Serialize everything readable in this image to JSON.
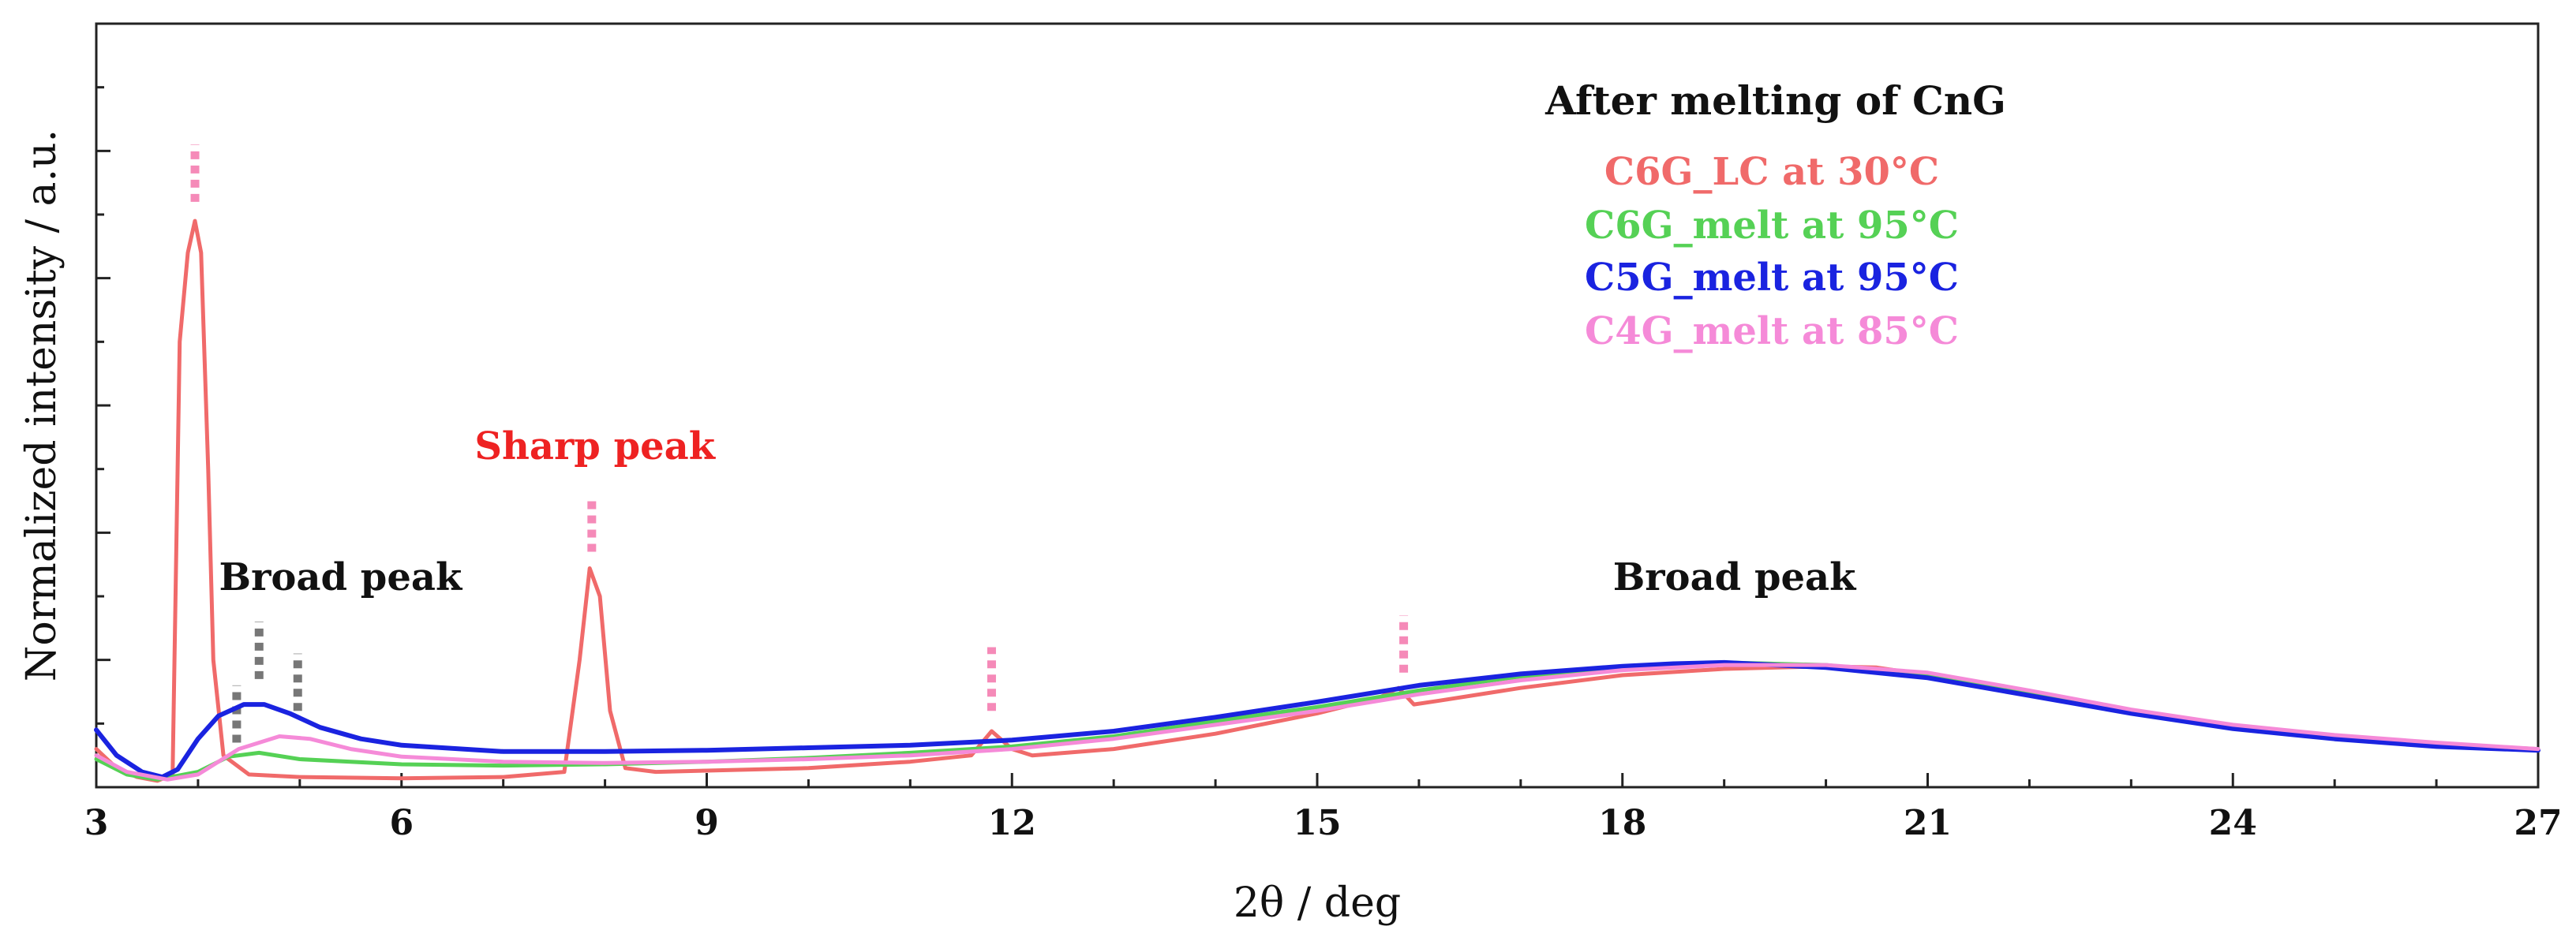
{
  "chart_data": {
    "type": "line",
    "title": "",
    "xlabel": "2θ / deg",
    "ylabel": "Normalized intensity / a.u.",
    "xlim": [
      3,
      27
    ],
    "ylim": [
      0,
      6
    ],
    "xticks": [
      3,
      6,
      9,
      12,
      15,
      18,
      21,
      24,
      27
    ],
    "x_minor_step": 1,
    "y_tick_step": 0.5,
    "y_tick_labels_shown": false,
    "grid": false,
    "legend_title": "After melting of CnG",
    "legend_position": "top-right",
    "series": [
      {
        "name": "C6G_LC at 30°C",
        "color": "#f06a6a",
        "points": [
          [
            3.0,
            0.3
          ],
          [
            3.2,
            0.15
          ],
          [
            3.4,
            0.08
          ],
          [
            3.6,
            0.05
          ],
          [
            3.75,
            0.1
          ],
          [
            3.82,
            3.5
          ],
          [
            3.9,
            4.2
          ],
          [
            3.97,
            4.45
          ],
          [
            4.03,
            4.2
          ],
          [
            4.1,
            2.5
          ],
          [
            4.15,
            1.0
          ],
          [
            4.25,
            0.25
          ],
          [
            4.5,
            0.1
          ],
          [
            5.0,
            0.08
          ],
          [
            6.0,
            0.07
          ],
          [
            7.0,
            0.08
          ],
          [
            7.6,
            0.12
          ],
          [
            7.75,
            1.0
          ],
          [
            7.85,
            1.72
          ],
          [
            7.95,
            1.5
          ],
          [
            8.05,
            0.6
          ],
          [
            8.2,
            0.15
          ],
          [
            8.5,
            0.12
          ],
          [
            9.0,
            0.13
          ],
          [
            10.0,
            0.15
          ],
          [
            11.0,
            0.2
          ],
          [
            11.6,
            0.25
          ],
          [
            11.8,
            0.44
          ],
          [
            12.0,
            0.3
          ],
          [
            12.2,
            0.25
          ],
          [
            13.0,
            0.3
          ],
          [
            14.0,
            0.42
          ],
          [
            15.0,
            0.58
          ],
          [
            15.6,
            0.7
          ],
          [
            15.8,
            0.78
          ],
          [
            15.95,
            0.65
          ],
          [
            16.2,
            0.68
          ],
          [
            17.0,
            0.78
          ],
          [
            18.0,
            0.88
          ],
          [
            19.0,
            0.93
          ],
          [
            20.0,
            0.95
          ],
          [
            20.5,
            0.94
          ],
          [
            21.0,
            0.88
          ],
          [
            22.0,
            0.74
          ],
          [
            23.0,
            0.6
          ],
          [
            24.0,
            0.48
          ],
          [
            25.0,
            0.4
          ],
          [
            26.0,
            0.34
          ],
          [
            27.0,
            0.3
          ]
        ]
      },
      {
        "name": "C6G_melt at 95°C",
        "color": "#55d155",
        "points": [
          [
            3.0,
            0.22
          ],
          [
            3.3,
            0.1
          ],
          [
            3.6,
            0.06
          ],
          [
            4.0,
            0.12
          ],
          [
            4.3,
            0.24
          ],
          [
            4.6,
            0.27
          ],
          [
            5.0,
            0.22
          ],
          [
            6.0,
            0.18
          ],
          [
            7.0,
            0.17
          ],
          [
            8.0,
            0.18
          ],
          [
            9.0,
            0.2
          ],
          [
            10.0,
            0.23
          ],
          [
            11.0,
            0.27
          ],
          [
            12.0,
            0.32
          ],
          [
            13.0,
            0.4
          ],
          [
            14.0,
            0.52
          ],
          [
            15.0,
            0.63
          ],
          [
            16.0,
            0.76
          ],
          [
            17.0,
            0.87
          ],
          [
            18.0,
            0.94
          ],
          [
            19.0,
            0.98
          ],
          [
            20.0,
            0.96
          ],
          [
            21.0,
            0.88
          ],
          [
            22.0,
            0.74
          ],
          [
            23.0,
            0.59
          ],
          [
            24.0,
            0.47
          ],
          [
            25.0,
            0.39
          ],
          [
            26.0,
            0.33
          ],
          [
            27.0,
            0.29
          ]
        ]
      },
      {
        "name": "C5G_melt at 95°C",
        "color": "#1a23e0",
        "points": [
          [
            3.0,
            0.45
          ],
          [
            3.2,
            0.25
          ],
          [
            3.45,
            0.12
          ],
          [
            3.65,
            0.08
          ],
          [
            3.8,
            0.14
          ],
          [
            4.0,
            0.38
          ],
          [
            4.2,
            0.56
          ],
          [
            4.45,
            0.65
          ],
          [
            4.65,
            0.65
          ],
          [
            4.9,
            0.58
          ],
          [
            5.2,
            0.47
          ],
          [
            5.6,
            0.38
          ],
          [
            6.0,
            0.33
          ],
          [
            7.0,
            0.28
          ],
          [
            8.0,
            0.28
          ],
          [
            9.0,
            0.29
          ],
          [
            10.0,
            0.31
          ],
          [
            11.0,
            0.33
          ],
          [
            12.0,
            0.37
          ],
          [
            13.0,
            0.44
          ],
          [
            14.0,
            0.55
          ],
          [
            15.0,
            0.67
          ],
          [
            16.0,
            0.8
          ],
          [
            17.0,
            0.89
          ],
          [
            18.0,
            0.95
          ],
          [
            18.5,
            0.97
          ],
          [
            19.0,
            0.98
          ],
          [
            19.5,
            0.96
          ],
          [
            20.0,
            0.94
          ],
          [
            21.0,
            0.86
          ],
          [
            22.0,
            0.72
          ],
          [
            23.0,
            0.58
          ],
          [
            24.0,
            0.46
          ],
          [
            25.0,
            0.38
          ],
          [
            26.0,
            0.32
          ],
          [
            27.0,
            0.29
          ]
        ]
      },
      {
        "name": "C4G_melt at 85°C",
        "color": "#f58ad8",
        "points": [
          [
            3.0,
            0.25
          ],
          [
            3.3,
            0.12
          ],
          [
            3.7,
            0.06
          ],
          [
            4.0,
            0.1
          ],
          [
            4.4,
            0.3
          ],
          [
            4.8,
            0.4
          ],
          [
            5.1,
            0.38
          ],
          [
            5.5,
            0.3
          ],
          [
            6.0,
            0.24
          ],
          [
            7.0,
            0.2
          ],
          [
            8.0,
            0.19
          ],
          [
            9.0,
            0.2
          ],
          [
            10.0,
            0.22
          ],
          [
            11.0,
            0.25
          ],
          [
            12.0,
            0.3
          ],
          [
            13.0,
            0.38
          ],
          [
            14.0,
            0.49
          ],
          [
            15.0,
            0.6
          ],
          [
            16.0,
            0.73
          ],
          [
            17.0,
            0.84
          ],
          [
            18.0,
            0.92
          ],
          [
            19.0,
            0.96
          ],
          [
            20.0,
            0.96
          ],
          [
            21.0,
            0.9
          ],
          [
            22.0,
            0.76
          ],
          [
            23.0,
            0.61
          ],
          [
            24.0,
            0.49
          ],
          [
            25.0,
            0.41
          ],
          [
            26.0,
            0.35
          ],
          [
            27.0,
            0.3
          ]
        ]
      }
    ],
    "annotations": [
      {
        "text": "Sharp peak",
        "x": 7.9,
        "y": 2.58,
        "color": "#ee2222"
      },
      {
        "text": "Broad peak",
        "x": 5.4,
        "y": 1.55,
        "color": "#111111"
      },
      {
        "text": "Broad peak",
        "x": 19.1,
        "y": 1.55,
        "color": "#111111"
      }
    ],
    "peak_markers": [
      {
        "x": 3.97,
        "y0": 4.6,
        "y1": 5.05,
        "color": "#f58ab8"
      },
      {
        "x": 7.87,
        "y0": 1.85,
        "y1": 2.28,
        "color": "#f58ab8"
      },
      {
        "x": 11.8,
        "y0": 0.6,
        "y1": 1.1,
        "color": "#f58ab8"
      },
      {
        "x": 15.85,
        "y0": 0.9,
        "y1": 1.35,
        "color": "#f58ab8"
      },
      {
        "x": 4.38,
        "y0": 0.35,
        "y1": 0.8,
        "color": "#777777"
      },
      {
        "x": 4.6,
        "y0": 0.85,
        "y1": 1.3,
        "color": "#777777"
      },
      {
        "x": 4.98,
        "y0": 0.6,
        "y1": 1.05,
        "color": "#777777"
      }
    ]
  }
}
